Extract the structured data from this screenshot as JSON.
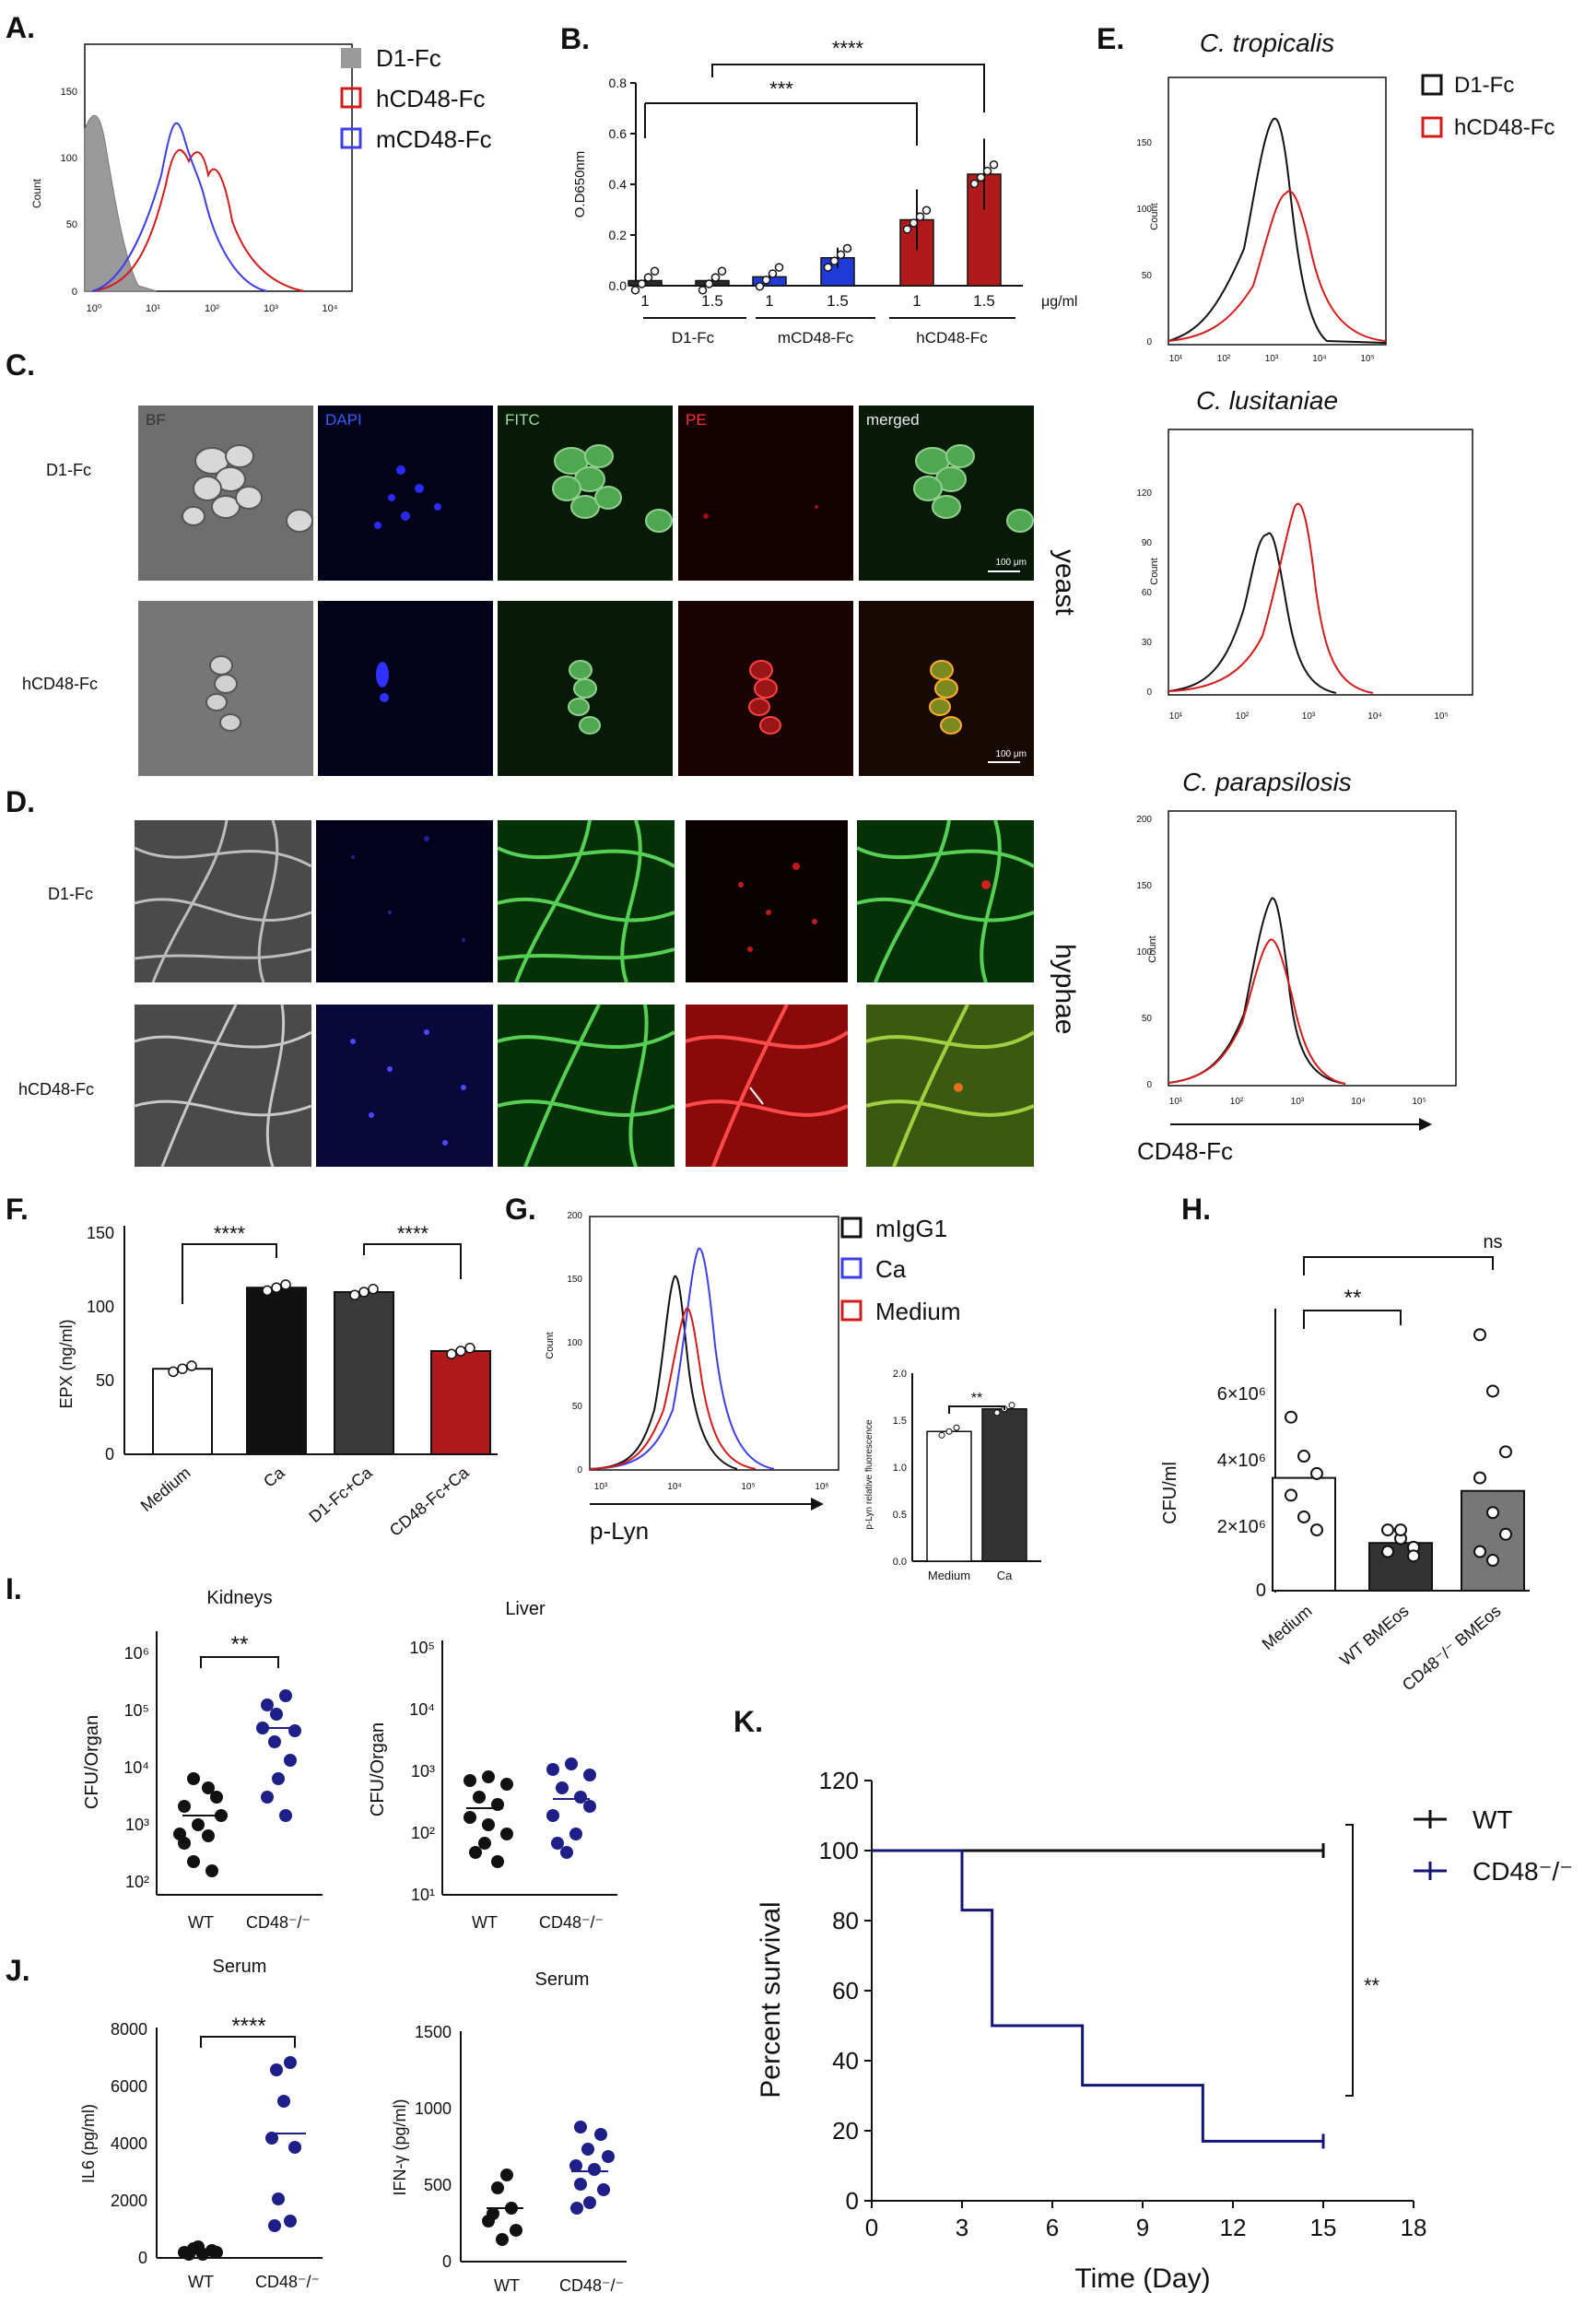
{
  "panels": {
    "A": "A.",
    "B": "B.",
    "C": "C.",
    "D": "D.",
    "E": "E.",
    "F": "F.",
    "G": "G.",
    "H": "H.",
    "I": "I.",
    "J": "J.",
    "K": "K."
  },
  "A": {
    "ylabel": "Count",
    "legend": [
      "D1-Fc",
      "hCD48-Fc",
      "mCD48-Fc"
    ],
    "yticks": [
      "0",
      "50",
      "100",
      "150"
    ],
    "xticks": [
      "10⁰",
      "10¹",
      "10²",
      "10³",
      "10⁴"
    ]
  },
  "B": {
    "ylabel": "O.D650nm",
    "yticks": [
      "0.0",
      "0.2",
      "0.4",
      "0.6",
      "0.8"
    ],
    "unit": "μg/ml",
    "stars_long": "****",
    "stars_short": "***",
    "chart_data": {
      "type": "bar",
      "categories": [
        "1",
        "1.5",
        "1",
        "1.5",
        "1",
        "1.5"
      ],
      "groups": [
        "D1-Fc",
        "mCD48-Fc",
        "hCD48-Fc"
      ],
      "values": [
        0.02,
        0.02,
        0.035,
        0.11,
        0.26,
        0.44
      ],
      "errors": [
        0.01,
        0.01,
        0.01,
        0.04,
        0.12,
        0.14
      ],
      "colors": [
        "#2a2a2a",
        "#2a2a2a",
        "#1f3ad6",
        "#1f3ad6",
        "#b01a1a",
        "#b01a1a"
      ],
      "ylim": [
        0,
        0.8
      ]
    }
  },
  "C": {
    "cols": [
      "BF",
      "DAPI",
      "FITC",
      "PE",
      "merged"
    ],
    "rows": [
      "D1-Fc",
      "hCD48-Fc"
    ],
    "side": "yeast",
    "scale": "100 μm"
  },
  "D": {
    "rows": [
      "D1-Fc",
      "hCD48-Fc"
    ],
    "side": "hyphae"
  },
  "E": {
    "legend": [
      "D1-Fc",
      "hCD48-Fc"
    ],
    "species": [
      "C. tropicalis",
      "C. lusitaniae",
      "C. parapsilosis"
    ],
    "ylabel": "Count",
    "xlabel": "CD48-Fc",
    "yticks1": [
      "0",
      "50",
      "100",
      "150"
    ],
    "yticks2": [
      "0",
      "30",
      "60",
      "90",
      "120"
    ],
    "yticks3": [
      "0",
      "50",
      "100",
      "150",
      "200"
    ],
    "xticks": [
      "10¹",
      "10²",
      "10³",
      "10⁴",
      "10⁵"
    ]
  },
  "F": {
    "ylabel": "EPX (ng/ml)",
    "yticks": [
      "0",
      "50",
      "100",
      "150"
    ],
    "stars": "****",
    "chart_data": {
      "type": "bar",
      "categories": [
        "Medium",
        "Ca",
        "D1-Fc+Ca",
        "CD48-Fc+Ca"
      ],
      "values": [
        58,
        113,
        110,
        70
      ],
      "colors": [
        "#ffffff",
        "#111111",
        "#3a3a3a",
        "#b01a1a"
      ],
      "ylim": [
        0,
        150
      ]
    }
  },
  "G": {
    "legend": [
      "mIgG1",
      "Ca",
      "Medium"
    ],
    "ylabel": "Count",
    "xlabel": "p-Lyn",
    "yticks": [
      "0",
      "50",
      "100",
      "150",
      "200"
    ],
    "xticks": [
      "10³",
      "10⁴",
      "10⁵",
      "10⁶"
    ],
    "inset": {
      "ylabel": "p-Lyn relative fluorescence",
      "yticks": [
        "0.0",
        "0.5",
        "1.0",
        "1.5",
        "2.0"
      ],
      "stars": "**",
      "chart_data": {
        "type": "bar",
        "categories": [
          "Medium",
          "Ca"
        ],
        "values": [
          1.38,
          1.62
        ],
        "ylim": [
          0,
          2.0
        ]
      }
    }
  },
  "H": {
    "ylabel": "CFU/ml",
    "yticks": [
      "0",
      "2×10⁶",
      "4×10⁶",
      "6×10⁶"
    ],
    "stars": "**",
    "ns": "ns",
    "chart_data": {
      "type": "bar",
      "categories": [
        "Medium",
        "WT BMEos",
        "CD48⁻/⁻ BMEos"
      ],
      "values": [
        2.6,
        1.1,
        2.3
      ],
      "unit": "×10⁶",
      "ylim": [
        0,
        6.5
      ]
    }
  },
  "I": {
    "kidneys_title": "Kidneys",
    "liver_title": "Liver",
    "ylabel": "CFU/Organ",
    "kidney_yticks": [
      "10²",
      "10³",
      "10⁴",
      "10⁵",
      "10⁶"
    ],
    "liver_yticks": [
      "10¹",
      "10²",
      "10³",
      "10⁴",
      "10⁵"
    ],
    "xcats": [
      "WT",
      "CD48⁻/⁻"
    ],
    "stars": "**"
  },
  "J": {
    "title": "Serum",
    "il6_label": "IL6 (pg/ml)",
    "ifn_label": "IFN-γ (pg/ml)",
    "il6_yticks": [
      "0",
      "2000",
      "4000",
      "6000",
      "8000"
    ],
    "ifn_yticks": [
      "0",
      "500",
      "1000",
      "1500"
    ],
    "xcats": [
      "WT",
      "CD48⁻/⁻"
    ],
    "stars": "****"
  },
  "K": {
    "ylabel": "Percent survival",
    "xlabel": "Time (Day)",
    "legend": [
      "WT",
      "CD48⁻/⁻"
    ],
    "stars": "**",
    "yticks": [
      "0",
      "20",
      "40",
      "60",
      "80",
      "100",
      "120"
    ],
    "xticks": [
      "0",
      "3",
      "6",
      "9",
      "12",
      "15",
      "18"
    ],
    "chart_data": {
      "type": "line",
      "series": [
        {
          "name": "WT",
          "x": [
            0,
            15
          ],
          "y": [
            100,
            100
          ]
        },
        {
          "name": "CD48⁻/⁻",
          "x": [
            0,
            3,
            3,
            4,
            4,
            7,
            7,
            11,
            11,
            15
          ],
          "y": [
            100,
            100,
            83,
            83,
            50,
            50,
            33,
            33,
            17,
            17
          ]
        }
      ],
      "xlim": [
        0,
        18
      ],
      "ylim": [
        0,
        120
      ]
    }
  }
}
